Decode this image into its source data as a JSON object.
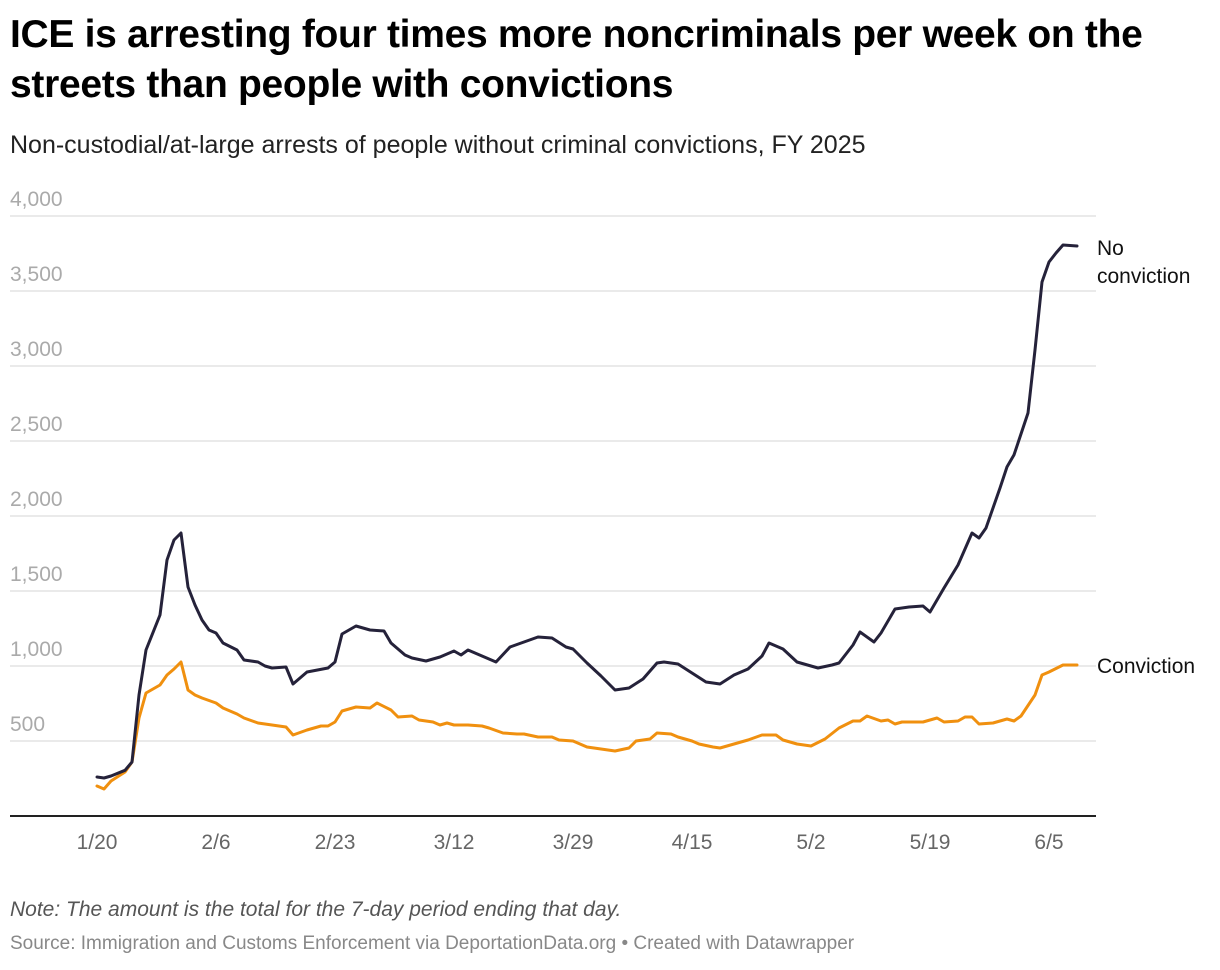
{
  "title": "ICE is arresting four times more noncriminals per week on the streets than people with convictions",
  "subtitle": "Non-custodial/at-large arrests of people without criminal convictions, FY 2025",
  "note": "Note: The amount is the total for the 7-day period ending that day.",
  "source": "Source: Immigration and Customs Enforcement via DeportationData.org • Created with Datawrapper",
  "chart_data": {
    "type": "line",
    "title": "ICE is arresting four times more noncriminals per week on the streets than people with convictions",
    "subtitle": "Non-custodial/at-large arrests of people without criminal convictions, FY 2025",
    "xlabel": "",
    "ylabel": "",
    "ylim": [
      0,
      4000
    ],
    "yticks": [
      500,
      1000,
      1500,
      2000,
      2500,
      3000,
      3500,
      4000
    ],
    "ytick_labels": [
      "500",
      "1,000",
      "1,500",
      "2,000",
      "2,500",
      "3,000",
      "3,500",
      "4,000"
    ],
    "xticks": [
      "1/20",
      "2/6",
      "2/23",
      "3/12",
      "3/29",
      "4/15",
      "5/2",
      "5/19",
      "6/5"
    ],
    "grid": true,
    "legend": "direct labels at line ends (right)",
    "series": [
      {
        "name": "No conviction",
        "color": "#25223a",
        "points": [
          [
            "1/20",
            260
          ],
          [
            "1/21",
            253
          ],
          [
            "1/22",
            267
          ],
          [
            "1/24",
            305
          ],
          [
            "1/25",
            360
          ],
          [
            "1/26",
            807
          ],
          [
            "1/27",
            1107
          ],
          [
            "1/29",
            1340
          ],
          [
            "1/30",
            1707
          ],
          [
            "1/31",
            1840
          ],
          [
            "2/1",
            1887
          ],
          [
            "2/2",
            1527
          ],
          [
            "2/3",
            1407
          ],
          [
            "2/4",
            1307
          ],
          [
            "2/5",
            1240
          ],
          [
            "2/6",
            1220
          ],
          [
            "2/7",
            1153
          ],
          [
            "2/9",
            1107
          ],
          [
            "2/10",
            1040
          ],
          [
            "2/12",
            1027
          ],
          [
            "2/13",
            1000
          ],
          [
            "2/14",
            987
          ],
          [
            "2/16",
            993
          ],
          [
            "2/17",
            880
          ],
          [
            "2/19",
            960
          ],
          [
            "2/22",
            987
          ],
          [
            "2/23",
            1027
          ],
          [
            "2/24",
            1213
          ],
          [
            "2/26",
            1267
          ],
          [
            "2/28",
            1240
          ],
          [
            "3/2",
            1233
          ],
          [
            "3/3",
            1153
          ],
          [
            "3/5",
            1073
          ],
          [
            "3/6",
            1053
          ],
          [
            "3/8",
            1033
          ],
          [
            "3/10",
            1060
          ],
          [
            "3/12",
            1100
          ],
          [
            "3/13",
            1073
          ],
          [
            "3/14",
            1107
          ],
          [
            "3/16",
            1067
          ],
          [
            "3/18",
            1027
          ],
          [
            "3/20",
            1127
          ],
          [
            "3/22",
            1160
          ],
          [
            "3/24",
            1193
          ],
          [
            "3/26",
            1187
          ],
          [
            "3/28",
            1127
          ],
          [
            "3/29",
            1113
          ],
          [
            "3/31",
            1020
          ],
          [
            "4/2",
            933
          ],
          [
            "4/4",
            840
          ],
          [
            "4/6",
            853
          ],
          [
            "4/8",
            913
          ],
          [
            "4/10",
            1020
          ],
          [
            "4/11",
            1027
          ],
          [
            "4/13",
            1013
          ],
          [
            "4/15",
            953
          ],
          [
            "4/17",
            893
          ],
          [
            "4/19",
            880
          ],
          [
            "4/21",
            940
          ],
          [
            "4/23",
            980
          ],
          [
            "4/25",
            1067
          ],
          [
            "4/26",
            1153
          ],
          [
            "4/28",
            1113
          ],
          [
            "4/30",
            1027
          ],
          [
            "5/3",
            987
          ],
          [
            "5/5",
            1007
          ],
          [
            "5/6",
            1020
          ],
          [
            "5/8",
            1140
          ],
          [
            "5/9",
            1227
          ],
          [
            "5/11",
            1160
          ],
          [
            "5/12",
            1220
          ],
          [
            "5/14",
            1380
          ],
          [
            "5/16",
            1393
          ],
          [
            "5/18",
            1400
          ],
          [
            "5/19",
            1360
          ],
          [
            "5/21",
            1520
          ],
          [
            "5/23",
            1673
          ],
          [
            "5/25",
            1887
          ],
          [
            "5/26",
            1853
          ],
          [
            "5/27",
            1920
          ],
          [
            "5/29",
            2187
          ],
          [
            "5/30",
            2327
          ],
          [
            "5/31",
            2407
          ],
          [
            "6/2",
            2687
          ],
          [
            "6/3",
            3107
          ],
          [
            "6/4",
            3560
          ],
          [
            "6/5",
            3693
          ],
          [
            "6/6",
            3753
          ],
          [
            "6/7",
            3807
          ],
          [
            "6/9",
            3800
          ]
        ]
      },
      {
        "name": "Conviction",
        "color": "#f0900f",
        "points": [
          [
            "1/20",
            200
          ],
          [
            "1/21",
            180
          ],
          [
            "1/22",
            233
          ],
          [
            "1/24",
            293
          ],
          [
            "1/25",
            360
          ],
          [
            "1/26",
            653
          ],
          [
            "1/27",
            820
          ],
          [
            "1/29",
            873
          ],
          [
            "1/30",
            940
          ],
          [
            "1/31",
            980
          ],
          [
            "2/1",
            1027
          ],
          [
            "2/2",
            840
          ],
          [
            "2/3",
            807
          ],
          [
            "2/4",
            787
          ],
          [
            "2/6",
            753
          ],
          [
            "2/7",
            720
          ],
          [
            "2/9",
            680
          ],
          [
            "2/10",
            653
          ],
          [
            "2/12",
            620
          ],
          [
            "2/13",
            613
          ],
          [
            "2/15",
            600
          ],
          [
            "2/16",
            593
          ],
          [
            "2/17",
            540
          ],
          [
            "2/19",
            573
          ],
          [
            "2/21",
            600
          ],
          [
            "2/22",
            600
          ],
          [
            "2/23",
            627
          ],
          [
            "2/24",
            700
          ],
          [
            "2/26",
            727
          ],
          [
            "2/28",
            720
          ],
          [
            "3/1",
            753
          ],
          [
            "3/3",
            707
          ],
          [
            "3/4",
            660
          ],
          [
            "3/6",
            667
          ],
          [
            "3/7",
            640
          ],
          [
            "3/9",
            627
          ],
          [
            "3/10",
            607
          ],
          [
            "3/11",
            620
          ],
          [
            "3/12",
            607
          ],
          [
            "3/14",
            607
          ],
          [
            "3/16",
            600
          ],
          [
            "3/17",
            587
          ],
          [
            "3/19",
            553
          ],
          [
            "3/21",
            547
          ],
          [
            "3/22",
            547
          ],
          [
            "3/24",
            527
          ],
          [
            "3/26",
            527
          ],
          [
            "3/27",
            507
          ],
          [
            "3/29",
            500
          ],
          [
            "3/31",
            460
          ],
          [
            "4/2",
            447
          ],
          [
            "4/4",
            433
          ],
          [
            "4/6",
            453
          ],
          [
            "4/7",
            500
          ],
          [
            "4/9",
            513
          ],
          [
            "4/10",
            553
          ],
          [
            "4/12",
            547
          ],
          [
            "4/13",
            527
          ],
          [
            "4/15",
            500
          ],
          [
            "4/16",
            480
          ],
          [
            "4/18",
            460
          ],
          [
            "4/19",
            453
          ],
          [
            "4/21",
            480
          ],
          [
            "4/23",
            507
          ],
          [
            "4/25",
            540
          ],
          [
            "4/27",
            540
          ],
          [
            "4/28",
            507
          ],
          [
            "4/30",
            480
          ],
          [
            "5/2",
            467
          ],
          [
            "5/4",
            513
          ],
          [
            "5/6",
            587
          ],
          [
            "5/8",
            633
          ],
          [
            "5/9",
            633
          ],
          [
            "5/10",
            667
          ],
          [
            "5/12",
            633
          ],
          [
            "5/13",
            640
          ],
          [
            "5/14",
            613
          ],
          [
            "5/15",
            627
          ],
          [
            "5/18",
            627
          ],
          [
            "5/20",
            653
          ],
          [
            "5/21",
            627
          ],
          [
            "5/23",
            633
          ],
          [
            "5/24",
            660
          ],
          [
            "5/25",
            660
          ],
          [
            "5/26",
            613
          ],
          [
            "5/28",
            620
          ],
          [
            "5/30",
            647
          ],
          [
            "5/31",
            633
          ],
          [
            "6/1",
            667
          ],
          [
            "6/3",
            807
          ],
          [
            "6/4",
            940
          ],
          [
            "6/5",
            960
          ],
          [
            "6/7",
            1007
          ],
          [
            "6/9",
            1007
          ]
        ]
      }
    ],
    "labels": {
      "no_conviction_line1": "No",
      "no_conviction_line2": "conviction",
      "conviction": "Conviction"
    }
  }
}
